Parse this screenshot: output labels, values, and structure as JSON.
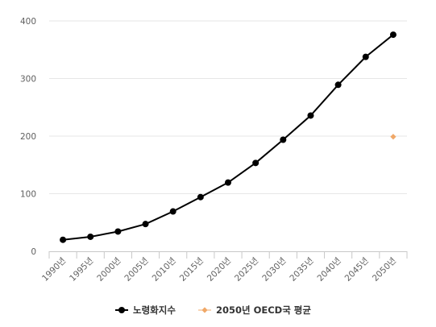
{
  "chart_data": {
    "type": "line",
    "title": "",
    "xlabel": "",
    "ylabel": "",
    "categories": [
      "1990년",
      "1995년",
      "2000년",
      "2005년",
      "2010년",
      "2015년",
      "2020년",
      "2025년",
      "2030년",
      "2035년",
      "2040년",
      "2045년",
      "2050년"
    ],
    "ylim": [
      0,
      400
    ],
    "yticks": [
      "0",
      "100",
      "200",
      "300",
      "400"
    ],
    "grid": "horizontal",
    "legend_position": "bottom",
    "series": [
      {
        "name": "노령화지수",
        "color": "#000000",
        "marker": "circle",
        "values": [
          20,
          25.2,
          34.3,
          47.3,
          69.2,
          94.1,
          119.4,
          153.4,
          193.7,
          235.7,
          289.1,
          337.6,
          376.1
        ]
      },
      {
        "name": "2050년 OECD국 평균",
        "color": "#f0a868",
        "marker": "diamond",
        "points": [
          {
            "x": "2050년",
            "y": 199
          }
        ]
      }
    ]
  }
}
